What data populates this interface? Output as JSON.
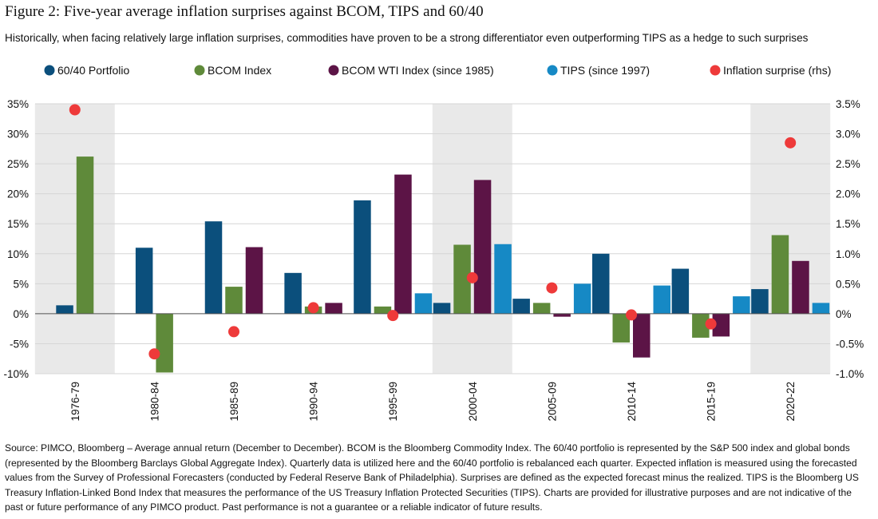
{
  "title": "Figure 2: Five-year average inflation surprises against BCOM, TIPS and 60/40",
  "subtitle": "Historically, when facing relatively large inflation surprises, commodities have proven to be a strong differentiator even outperforming TIPS as a hedge to such surprises",
  "source_note": "Source: PIMCO, Bloomberg – Average annual return (December to December). BCOM is the Bloomberg Commodity Index. The 60/40 portfolio is represented by the S&P 500 index and global bonds (represented by the Bloomberg Barclays Global Aggregate Index). Quarterly data is utilized here and the 60/40 portfolio is rebalanced each quarter. Expected inflation is measured using the forecasted values from the Survey of Professional Forecasters (conducted by Federal Reserve Bank of Philadelphia). Surprises are defined as the expected forecast minus the realized. TIPS is the Bloomberg US Treasury Inflation-Linked Bond Index that measures the performance of the US Treasury Inflation Protected Securities (TIPS). Charts are provided for illustrative purposes and are not indicative of the past or future performance of any PIMCO product. Past performance is not a guarantee or a reliable indicator of future results.",
  "chart_data": {
    "type": "bar",
    "categories": [
      "1976-79",
      "1980-84",
      "1985-89",
      "1990-94",
      "1995-99",
      "2000-04",
      "2005-09",
      "2010-14",
      "2015-19",
      "2020-22"
    ],
    "series": [
      {
        "name": "60/40 Portfolio",
        "color": "#0b4f7c",
        "axis": "left",
        "type": "bar",
        "values": [
          1.4,
          11.0,
          15.4,
          6.8,
          18.9,
          1.8,
          2.5,
          10.0,
          7.5,
          4.1
        ]
      },
      {
        "name": "BCOM Index",
        "color": "#5f8a3a",
        "axis": "left",
        "type": "bar",
        "values": [
          26.2,
          -9.8,
          4.5,
          1.2,
          1.2,
          11.5,
          1.8,
          -4.8,
          -4.0,
          13.1
        ]
      },
      {
        "name": "BCOM WTI Index (since 1985)",
        "color": "#5c1446",
        "axis": "left",
        "type": "bar",
        "values": [
          null,
          null,
          11.1,
          1.8,
          23.2,
          22.3,
          -0.5,
          -7.3,
          -3.8,
          8.8
        ]
      },
      {
        "name": "TIPS (since 1997)",
        "color": "#1689c5",
        "axis": "left",
        "type": "bar",
        "values": [
          null,
          null,
          null,
          null,
          3.4,
          11.6,
          5.0,
          4.7,
          2.9,
          1.8
        ]
      },
      {
        "name": "Inflation surprise (rhs)",
        "color": "#ee3a3a",
        "axis": "right",
        "type": "scatter",
        "values": [
          3.4,
          -0.67,
          -0.3,
          0.1,
          -0.03,
          0.6,
          0.43,
          -0.02,
          -0.17,
          2.85
        ]
      }
    ],
    "y_left": {
      "ticks": [
        35,
        30,
        25,
        20,
        15,
        10,
        5,
        0,
        -5,
        -10
      ],
      "tick_labels": [
        "35%",
        "30%",
        "25%",
        "20%",
        "15%",
        "10%",
        "5%",
        "0%",
        "-5%",
        "-10%"
      ],
      "ylim": [
        -10,
        35
      ]
    },
    "y_right": {
      "ticks": [
        3.5,
        3.0,
        2.5,
        2.0,
        1.5,
        1.0,
        0.5,
        0,
        -0.5,
        -1.0
      ],
      "tick_labels": [
        "3.5%",
        "3.0%",
        "2.5%",
        "2.0%",
        "1.5%",
        "1.0%",
        "0.5%",
        "0%",
        "-0.5%",
        "-1.0%"
      ],
      "ylim": [
        -1.0,
        3.5
      ]
    },
    "highlighted_categories": [
      "1976-79",
      "2000-04",
      "2020-22"
    ],
    "highlight_color": "#e9e9e9",
    "gridlines": true,
    "legend_position": "top"
  }
}
